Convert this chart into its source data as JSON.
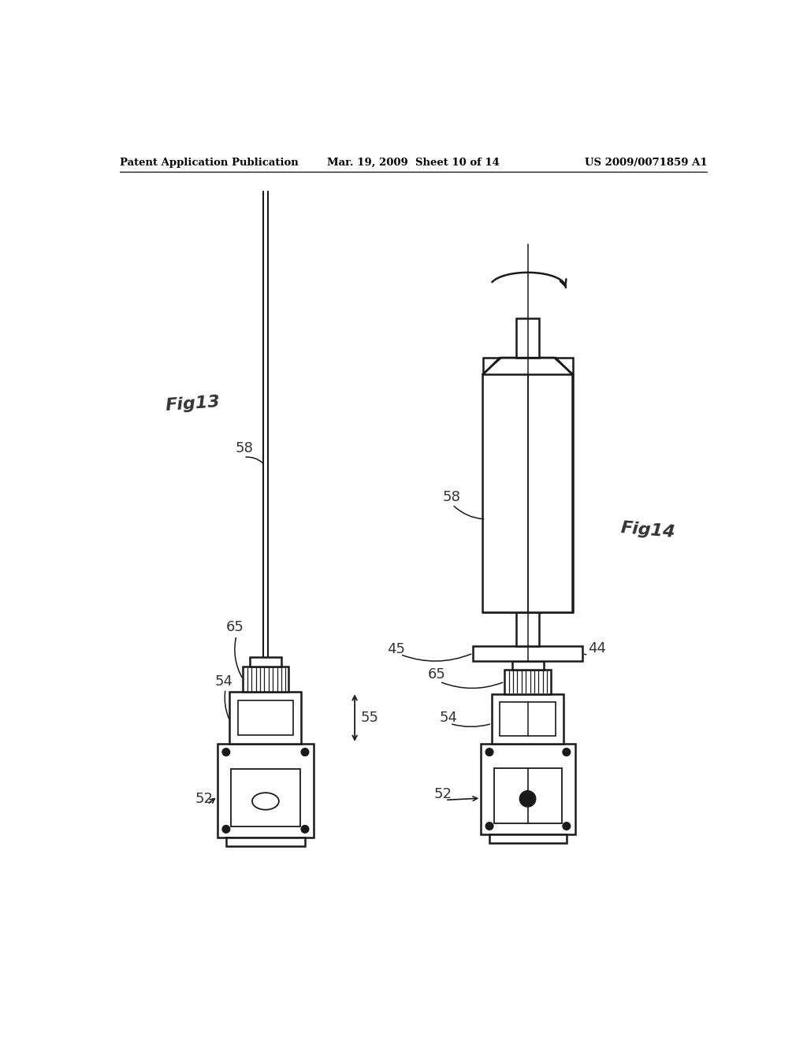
{
  "title_left": "Patent Application Publication",
  "title_mid": "Mar. 19, 2009  Sheet 10 of 14",
  "title_right": "US 2009/0071859 A1",
  "background": "#ffffff",
  "line_color": "#1a1a1a",
  "page_width": 10.24,
  "page_height": 13.2
}
